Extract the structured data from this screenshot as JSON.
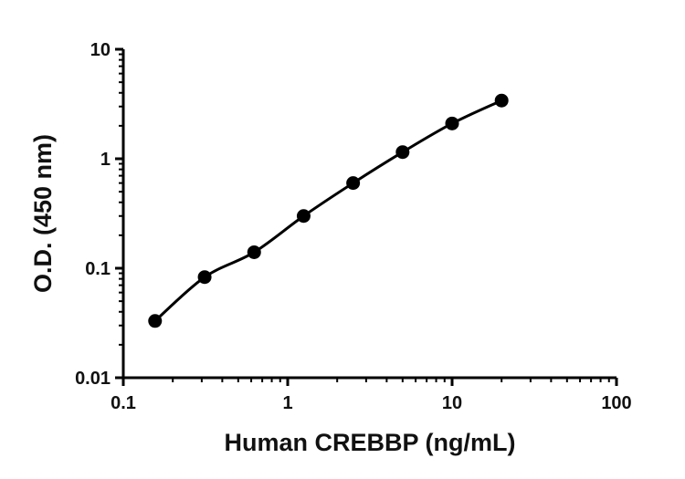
{
  "chart_data": {
    "type": "scatter",
    "xlabel": "Human CREBBP (ng/mL)",
    "ylabel": "O.D. (450 nm)",
    "x_scale": "log",
    "y_scale": "log",
    "xlim": [
      0.1,
      100
    ],
    "ylim": [
      0.01,
      10
    ],
    "x_ticks": [
      0.1,
      1,
      10,
      100
    ],
    "x_tick_labels": [
      "0.1",
      "1",
      "10",
      "100"
    ],
    "y_ticks": [
      0.01,
      0.1,
      1,
      10
    ],
    "y_tick_labels": [
      "0.01",
      "0.1",
      "1",
      "10"
    ],
    "grid": false,
    "legend": "none",
    "fit_line": true,
    "series": [
      {
        "x": [
          0.156,
          0.3125,
          0.625,
          1.25,
          2.5,
          5,
          10,
          20
        ],
        "y": [
          0.033,
          0.083,
          0.14,
          0.3,
          0.6,
          1.15,
          2.1,
          3.4
        ],
        "color": "#000000"
      }
    ]
  }
}
